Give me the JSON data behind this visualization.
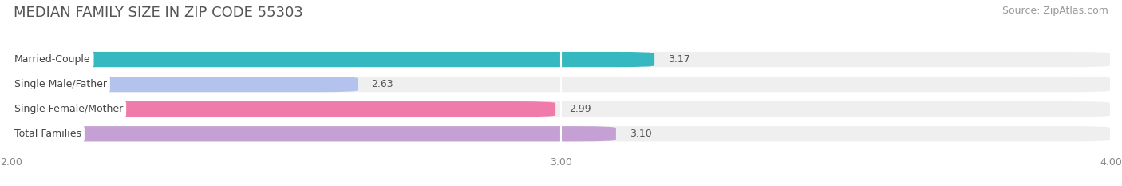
{
  "title": "MEDIAN FAMILY SIZE IN ZIP CODE 55303",
  "source": "Source: ZipAtlas.com",
  "categories": [
    "Married-Couple",
    "Single Male/Father",
    "Single Female/Mother",
    "Total Families"
  ],
  "values": [
    3.17,
    2.63,
    2.99,
    3.1
  ],
  "bar_colors": [
    "#35b8c0",
    "#b3c3ed",
    "#f07aaa",
    "#c4a0d4"
  ],
  "xlim": [
    2.0,
    4.0
  ],
  "xticks": [
    2.0,
    3.0,
    4.0
  ],
  "xtick_labels": [
    "2.00",
    "3.00",
    "4.00"
  ],
  "background_color": "#ffffff",
  "bar_background_color": "#efefef",
  "title_fontsize": 13,
  "source_fontsize": 9,
  "label_fontsize": 9,
  "value_fontsize": 9,
  "bar_height": 0.62,
  "value_labels": [
    "3.17",
    "2.63",
    "2.99",
    "3.10"
  ]
}
